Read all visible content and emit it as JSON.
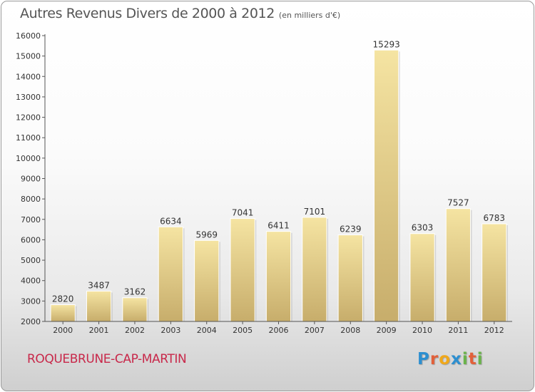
{
  "page": {
    "title": "Autres Revenus Divers de 2000 à 2012",
    "subtitle": "(en milliers d'€)",
    "place": "ROQUEBRUNE-CAP-MARTIN",
    "logo_letters": [
      "P",
      "r",
      "o",
      "x",
      "i",
      "t",
      "i"
    ],
    "logo_colors": [
      "#2d8fd0",
      "#e2603a",
      "#f0a81a",
      "#2d8fd0",
      "#6ab34a",
      "#e2603a",
      "#6ab34a"
    ]
  },
  "colors": {
    "bar_light": "#f5e4a2",
    "bar_dark": "#c7ad6b",
    "place_text": "#c8284a",
    "axis": "#555555"
  },
  "chart_data": {
    "type": "bar",
    "title": "Autres Revenus Divers de 2000 à 2012",
    "subtitle": "(en milliers d'€)",
    "xlabel": "",
    "ylabel": "",
    "categories": [
      "2000",
      "2001",
      "2002",
      "2003",
      "2004",
      "2005",
      "2006",
      "2007",
      "2008",
      "2009",
      "2010",
      "2011",
      "2012"
    ],
    "values": [
      2820,
      3487,
      3162,
      6634,
      5969,
      7041,
      6411,
      7101,
      6239,
      15293,
      6303,
      7527,
      6783
    ],
    "ylim": [
      2000,
      16000
    ],
    "yticks": [
      2000,
      3000,
      4000,
      5000,
      6000,
      7000,
      8000,
      9000,
      10000,
      11000,
      12000,
      13000,
      14000,
      15000,
      16000
    ],
    "grid": false,
    "legend": "none",
    "data_labels": true
  }
}
